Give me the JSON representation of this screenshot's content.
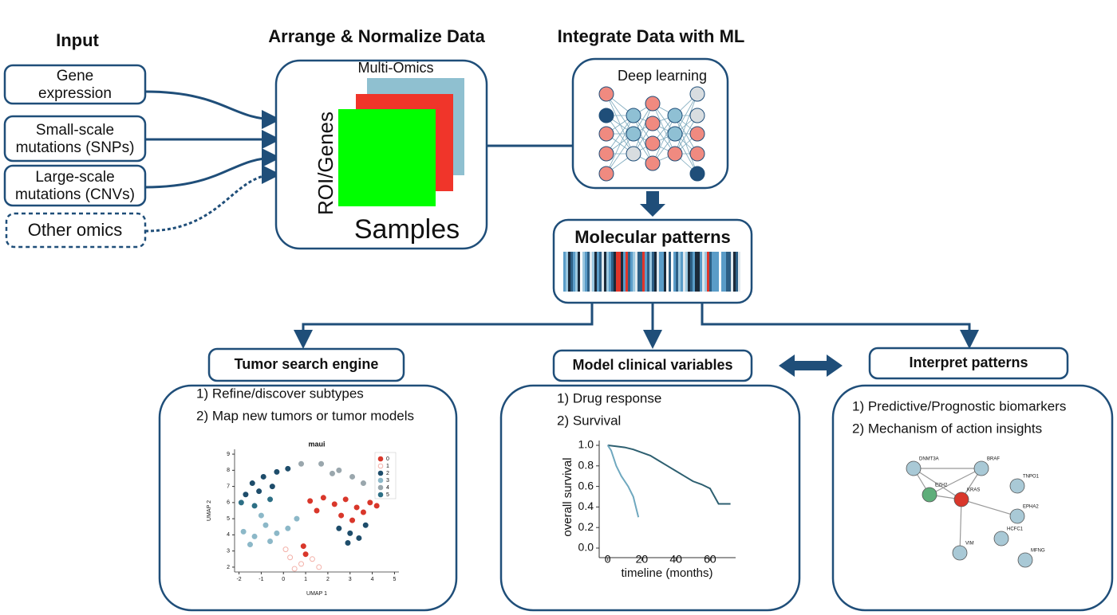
{
  "headers": {
    "input": "Input",
    "arrange": "Arrange & Normalize Data",
    "integrate": "Integrate Data with ML"
  },
  "inputs": [
    [
      "Gene",
      "expression"
    ],
    [
      "Small-scale",
      "mutations (SNPs)"
    ],
    [
      "Large-scale",
      "mutations (CNVs)"
    ],
    [
      "Other omics"
    ]
  ],
  "arrange": {
    "stack_label": "Multi-Omics",
    "row_label": "ROI/Genes",
    "col_label": "Samples"
  },
  "ml": {
    "label": "Deep learning"
  },
  "patterns": {
    "title": "Molecular patterns"
  },
  "panels": [
    {
      "title": "Tumor search engine",
      "items": [
        "1) Refine/discover subtypes",
        "2) Map new tumors or tumor models"
      ]
    },
    {
      "title": "Model clinical variables",
      "items": [
        "1) Drug response",
        "2) Survival"
      ]
    },
    {
      "title": "Interpret patterns",
      "items": [
        "1) Predictive/Prognostic biomarkers",
        "2) Mechanism of action insights"
      ]
    }
  ],
  "umap": {
    "title": "maui",
    "xlabel": "UMAP 1",
    "ylabel": "UMAP 2",
    "xlim": [
      -2.2,
      5.2
    ],
    "ylim": [
      1.7,
      9.3
    ],
    "xticks": [
      -2,
      -1,
      0,
      1,
      2,
      3,
      4,
      5
    ],
    "yticks": [
      2,
      3,
      4,
      5,
      6,
      7,
      8,
      9
    ],
    "clusters": [
      "0",
      "1",
      "2",
      "3",
      "4",
      "5"
    ],
    "colors": [
      "#d9372b",
      "#f3b0a8",
      "#1e4d6b",
      "#8cb8c8",
      "#9aa7ad",
      "#2d6f85"
    ],
    "x": [
      1.2,
      1.8,
      2.3,
      2.8,
      3.3,
      3.9,
      1.5,
      2.6,
      3.1,
      3.6,
      4.2,
      0.9,
      1.0,
      0.3,
      0.8,
      1.3,
      0.5,
      1.6,
      0.1,
      -1.4,
      -0.9,
      -0.3,
      0.2,
      -0.5,
      -1.7,
      2.5,
      3.0,
      3.4,
      2.9,
      3.7,
      4.3,
      -1.1,
      -1.8,
      -1.3,
      -0.8,
      -0.3,
      -1.5,
      -0.6,
      0.2,
      -1.0,
      0.6,
      1.7,
      2.5,
      3.1,
      3.6,
      2.2,
      0.8,
      -1.9,
      -1.3,
      -0.6
    ],
    "y": [
      6.1,
      6.3,
      5.9,
      6.2,
      5.7,
      6.0,
      5.5,
      5.2,
      4.9,
      5.4,
      5.8,
      3.3,
      2.8,
      2.6,
      2.2,
      2.5,
      1.9,
      2.0,
      3.1,
      7.2,
      7.6,
      7.9,
      8.1,
      7.0,
      6.5,
      4.4,
      4.1,
      3.8,
      3.5,
      4.6,
      6.7,
      6.7,
      4.2,
      3.9,
      4.6,
      4.1,
      3.4,
      3.6,
      4.4,
      5.2,
      5.0,
      8.4,
      8.0,
      7.6,
      7.2,
      7.8,
      8.4,
      6.0,
      5.8,
      6.2
    ],
    "cluster": [
      0,
      0,
      0,
      0,
      0,
      0,
      0,
      0,
      0,
      0,
      0,
      0,
      0,
      1,
      1,
      1,
      1,
      1,
      1,
      2,
      2,
      2,
      2,
      2,
      2,
      2,
      2,
      2,
      2,
      2,
      2,
      2,
      3,
      3,
      3,
      3,
      3,
      3,
      3,
      3,
      3,
      4,
      4,
      4,
      4,
      4,
      4,
      5,
      5,
      5
    ]
  },
  "survival": {
    "xlabel": "timeline (months)",
    "ylabel": "overall survival",
    "xlim": [
      -5,
      75
    ],
    "ylim": [
      0,
      1
    ],
    "xticks": [
      0,
      20,
      40,
      60
    ],
    "yticks": [
      {
        "value": 0,
        "label": "0.0"
      },
      {
        "value": 0.2,
        "label": "0.2"
      },
      {
        "value": 0.4,
        "label": "0.4"
      },
      {
        "value": 0.6,
        "label": "0.6"
      },
      {
        "value": 0.8,
        "label": "0.8"
      },
      {
        "value": 1,
        "label": "1.0"
      }
    ],
    "series": [
      {
        "color": "#2d5f70",
        "x": [
          0,
          5,
          10,
          15,
          20,
          25,
          30,
          35,
          40,
          45,
          50,
          55,
          60,
          65,
          70,
          72
        ],
        "y": [
          1,
          0.99,
          0.98,
          0.96,
          0.93,
          0.9,
          0.85,
          0.8,
          0.75,
          0.7,
          0.65,
          0.62,
          0.58,
          0.43,
          0.43,
          0.43
        ]
      },
      {
        "color": "#6fa8bf",
        "x": [
          0,
          2,
          5,
          8,
          12,
          15,
          18
        ],
        "y": [
          1,
          0.95,
          0.8,
          0.7,
          0.6,
          0.5,
          0.3
        ]
      }
    ]
  },
  "network": {
    "nodes": [
      "DNMT3A",
      "BRAF",
      "EZH2",
      "KRAS",
      "TNPO1",
      "EPHA2",
      "HCFC1",
      "VIM",
      "MFNG"
    ]
  }
}
